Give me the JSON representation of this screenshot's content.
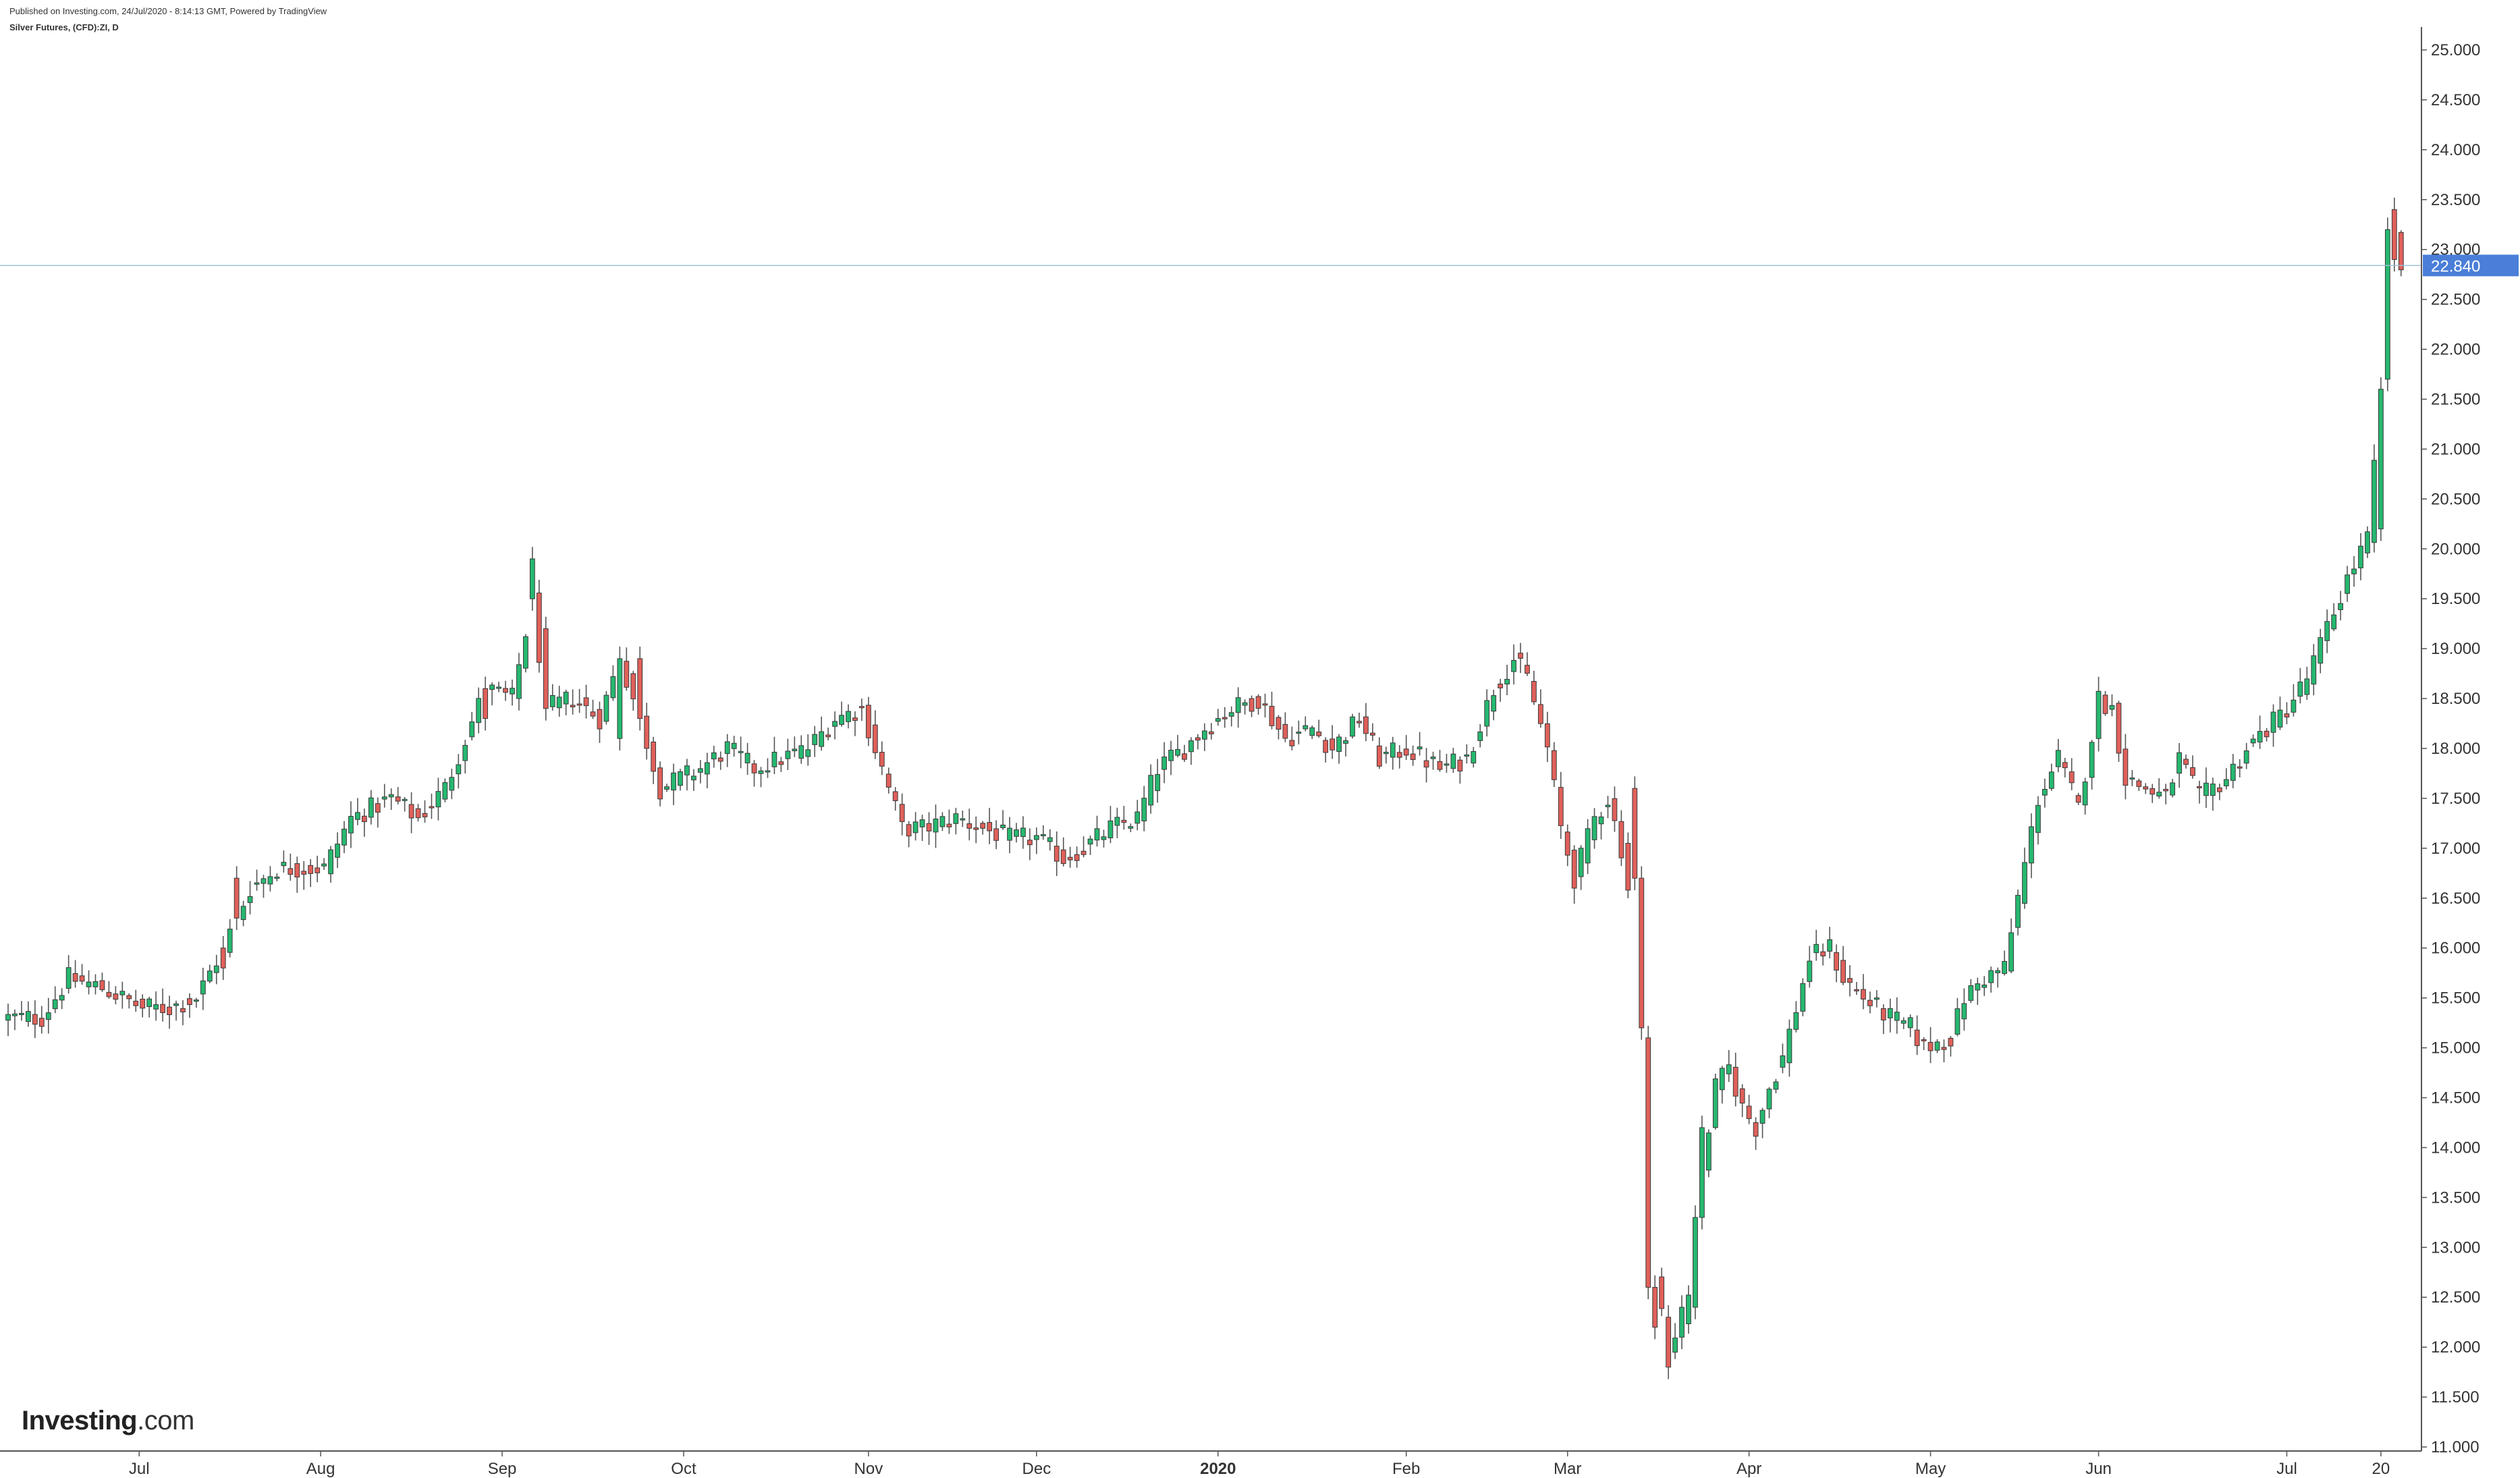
{
  "header": {
    "published": "Published on Investing.com, 24/Jul/2020 - 8:14:13 GMT, Powered by TradingView",
    "symbol": "Silver Futures, (CFD):ZI, D"
  },
  "logo": {
    "brand": "Investing",
    "suffix": ".com"
  },
  "colors": {
    "up": "#26b870",
    "down": "#e0605a",
    "wick": "#555555",
    "last_price_bg": "#4a7ed8",
    "price_line": "#9fc0d9"
  },
  "chart_data": {
    "type": "candlestick",
    "ylim": [
      11.0,
      25.0
    ],
    "y_ticks": [
      "11.000",
      "11.500",
      "12.000",
      "12.500",
      "13.000",
      "13.500",
      "14.000",
      "14.500",
      "15.000",
      "15.500",
      "16.000",
      "16.500",
      "17.000",
      "17.500",
      "18.000",
      "18.500",
      "19.000",
      "19.500",
      "20.000",
      "20.500",
      "21.000",
      "21.500",
      "22.000",
      "22.500",
      "23.000",
      "23.500",
      "24.000",
      "24.500",
      "25.000"
    ],
    "x_ticks": [
      {
        "label": "Jul",
        "idx": 19.5
      },
      {
        "label": "Aug",
        "idx": 46.5
      },
      {
        "label": "Sep",
        "idx": 73.5
      },
      {
        "label": "Oct",
        "idx": 100.5
      },
      {
        "label": "Nov",
        "idx": 128
      },
      {
        "label": "Dec",
        "idx": 153
      },
      {
        "label": "2020",
        "idx": 180
      },
      {
        "label": "Feb",
        "idx": 208
      },
      {
        "label": "Mar",
        "idx": 232
      },
      {
        "label": "Apr",
        "idx": 259
      },
      {
        "label": "May",
        "idx": 286
      },
      {
        "label": "Jun",
        "idx": 311
      },
      {
        "label": "Jul",
        "idx": 339
      },
      {
        "label": "20",
        "idx": 353
      }
    ],
    "last_price": "22.840",
    "last_value": 22.84,
    "anchors": [
      [
        0,
        15.3
      ],
      [
        5,
        15.3
      ],
      [
        9,
        15.7
      ],
      [
        14,
        15.6
      ],
      [
        20,
        15.4
      ],
      [
        24,
        15.4
      ],
      [
        28,
        15.5
      ],
      [
        32,
        16.0
      ],
      [
        36,
        16.6
      ],
      [
        40,
        16.8
      ],
      [
        47,
        16.8
      ],
      [
        51,
        17.3
      ],
      [
        57,
        17.5
      ],
      [
        61,
        17.3
      ],
      [
        65,
        17.6
      ],
      [
        68,
        18.1
      ],
      [
        71,
        18.6
      ],
      [
        75,
        18.5
      ],
      [
        78,
        19.5
      ],
      [
        80,
        18.4
      ],
      [
        84,
        18.5
      ],
      [
        88,
        18.3
      ],
      [
        91,
        18.9
      ],
      [
        94,
        18.3
      ],
      [
        97,
        17.6
      ],
      [
        100,
        17.7
      ],
      [
        103,
        17.8
      ],
      [
        107,
        18.0
      ],
      [
        111,
        17.8
      ],
      [
        115,
        17.9
      ],
      [
        119,
        18.0
      ],
      [
        123,
        18.3
      ],
      [
        127,
        18.4
      ],
      [
        130,
        17.8
      ],
      [
        133,
        17.2
      ],
      [
        136,
        17.2
      ],
      [
        141,
        17.3
      ],
      [
        145,
        17.2
      ],
      [
        149,
        17.1
      ],
      [
        153,
        17.1
      ],
      [
        157,
        16.9
      ],
      [
        160,
        17.0
      ],
      [
        164,
        17.2
      ],
      [
        168,
        17.3
      ],
      [
        171,
        17.8
      ],
      [
        175,
        18.0
      ],
      [
        178,
        18.2
      ],
      [
        182,
        18.4
      ],
      [
        186,
        18.5
      ],
      [
        190,
        18.1
      ],
      [
        194,
        18.2
      ],
      [
        197,
        18.0
      ],
      [
        201,
        18.3
      ],
      [
        204,
        17.9
      ],
      [
        208,
        18.0
      ],
      [
        213,
        17.8
      ],
      [
        217,
        17.9
      ],
      [
        221,
        18.6
      ],
      [
        224,
        18.9
      ],
      [
        226,
        18.7
      ],
      [
        229,
        18.0
      ],
      [
        231,
        17.2
      ],
      [
        233,
        16.7
      ],
      [
        236,
        17.3
      ],
      [
        238,
        17.5
      ],
      [
        240,
        17.0
      ],
      [
        242,
        16.2
      ],
      [
        243,
        15.1
      ],
      [
        244,
        13.8
      ],
      [
        245,
        12.7
      ],
      [
        247,
        12.0
      ],
      [
        249,
        12.2
      ],
      [
        251,
        12.9
      ],
      [
        252,
        13.8
      ],
      [
        254,
        14.6
      ],
      [
        256,
        14.8
      ],
      [
        258,
        14.4
      ],
      [
        260,
        14.2
      ],
      [
        262,
        14.6
      ],
      [
        264,
        14.9
      ],
      [
        266,
        15.4
      ],
      [
        268,
        15.9
      ],
      [
        271,
        16.0
      ],
      [
        273,
        15.7
      ],
      [
        276,
        15.5
      ],
      [
        280,
        15.3
      ],
      [
        283,
        15.2
      ],
      [
        285,
        15.0
      ],
      [
        289,
        15.1
      ],
      [
        291,
        15.5
      ],
      [
        294,
        15.7
      ],
      [
        297,
        15.8
      ],
      [
        299,
        16.5
      ],
      [
        302,
        17.5
      ],
      [
        305,
        17.9
      ],
      [
        308,
        17.4
      ],
      [
        311,
        18.5
      ],
      [
        313,
        18.4
      ],
      [
        315,
        17.7
      ],
      [
        318,
        17.6
      ],
      [
        321,
        17.5
      ],
      [
        323,
        17.9
      ],
      [
        326,
        17.5
      ],
      [
        330,
        17.7
      ],
      [
        333,
        18.0
      ],
      [
        336,
        18.2
      ],
      [
        339,
        18.4
      ],
      [
        342,
        18.7
      ],
      [
        345,
        19.2
      ],
      [
        348,
        19.7
      ],
      [
        351,
        20.1
      ],
      [
        353,
        21.5
      ],
      [
        354,
        22.9
      ],
      [
        355,
        23.2
      ],
      [
        356,
        22.8
      ]
    ],
    "highlights": [
      [
        32,
        16.0,
        15.8
      ],
      [
        34,
        16.7,
        16.3
      ],
      [
        71,
        18.6,
        18.3
      ],
      [
        78,
        19.5,
        19.9
      ],
      [
        80,
        19.2,
        18.4
      ],
      [
        91,
        18.1,
        18.9
      ],
      [
        94,
        18.9,
        18.3
      ],
      [
        242,
        17.6,
        16.7
      ],
      [
        243,
        16.7,
        15.2
      ],
      [
        244,
        15.1,
        12.6
      ],
      [
        245,
        12.6,
        12.2
      ],
      [
        247,
        12.3,
        11.8
      ],
      [
        249,
        12.1,
        12.4
      ],
      [
        251,
        12.4,
        13.3
      ],
      [
        252,
        13.3,
        14.2
      ],
      [
        353,
        20.2,
        21.6
      ],
      [
        354,
        21.7,
        23.2
      ],
      [
        355,
        23.4,
        22.9
      ]
    ],
    "n_bars": 357
  }
}
